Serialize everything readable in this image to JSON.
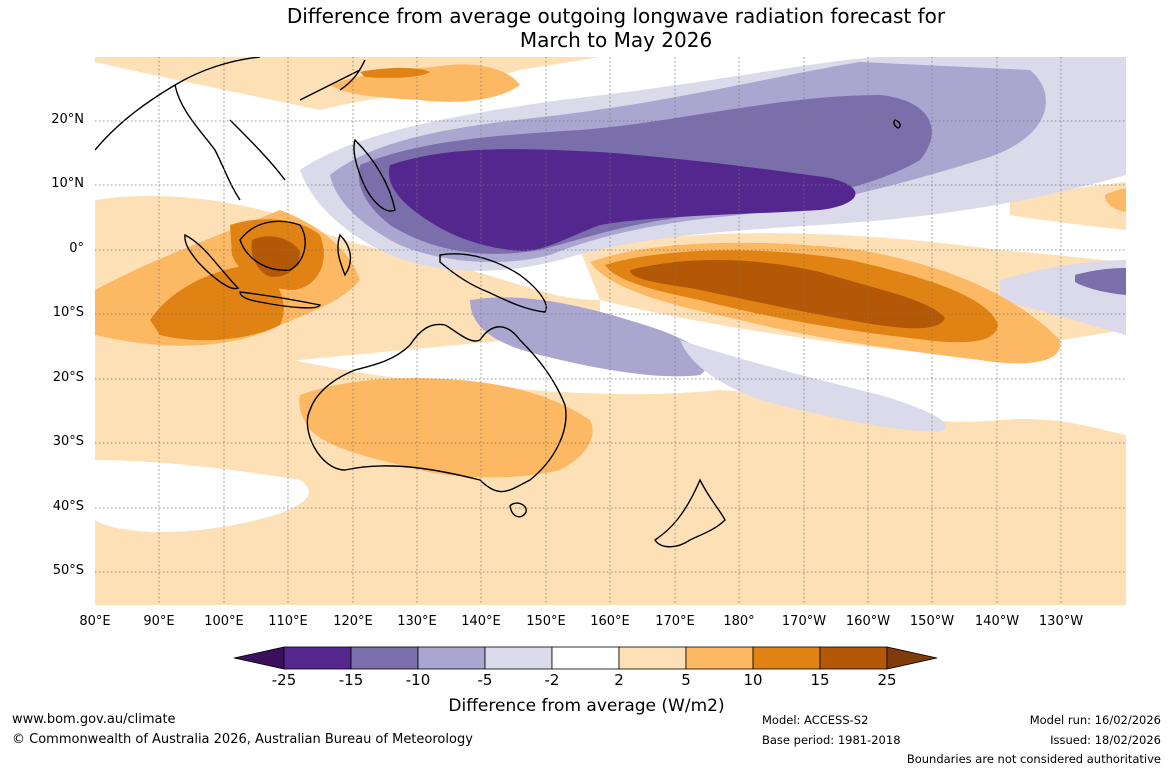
{
  "title": {
    "line1": "Difference from average outgoing longwave radiation forecast for",
    "line2": "March to May 2026"
  },
  "chart_data": {
    "type": "filled-contour-map",
    "variable": "Outgoing longwave radiation anomaly",
    "units": "W/m2",
    "period": "March to May 2026",
    "lat_ticks": [
      "20°N",
      "10°N",
      "0°",
      "10°S",
      "20°S",
      "30°S",
      "40°S",
      "50°S"
    ],
    "lon_ticks": [
      "80°E",
      "90°E",
      "100°E",
      "110°E",
      "120°E",
      "130°E",
      "140°E",
      "150°E",
      "160°E",
      "170°E",
      "180°",
      "170°W",
      "160°W",
      "150°W",
      "140°W",
      "130°W"
    ],
    "colorbar": {
      "label": "Difference from average (W/m2)",
      "ticks": [
        "-25",
        "-15",
        "-10",
        "-5",
        "-2",
        "2",
        "5",
        "10",
        "15",
        "25"
      ],
      "colors": [
        "#3a0f5e",
        "#54278f",
        "#7b6fab",
        "#aba6cf",
        "#dadaeb",
        "#ffffff",
        "#fee0b6",
        "#fdb863",
        "#e08214",
        "#b35806",
        "#7f3b08"
      ]
    },
    "regions": [
      {
        "name": "Equatorial western-central Pacific",
        "level": "-25 to -15",
        "color": "#54278f"
      },
      {
        "name": "North Pacific band",
        "level": "-15 to -10",
        "color": "#7b6fab"
      },
      {
        "name": "Central equatorial Pacific (south of equator)",
        "level": "15 to 25",
        "color": "#b35806"
      },
      {
        "name": "South Pacific convergence zone",
        "level": "10 to 15",
        "color": "#e08214"
      },
      {
        "name": "Java / Borneo",
        "level": "15 to 25",
        "color": "#b35806"
      },
      {
        "name": "Eastern Indian Ocean",
        "level": "10 to 15",
        "color": "#e08214"
      },
      {
        "name": "Australia interior",
        "level": "5 to 10",
        "color": "#fdb863"
      },
      {
        "name": "Coral Sea / northeast Australia",
        "level": "-10 to -5",
        "color": "#aba6cf"
      },
      {
        "name": "Far eastern Pacific near equator",
        "level": "-15 to -10",
        "color": "#7b6fab"
      },
      {
        "name": "Southern Ocean / Tasman Sea",
        "level": "2 to 5",
        "color": "#fee0b6"
      }
    ]
  },
  "footer": {
    "url": "www.bom.gov.au/climate",
    "copyright": "© Commonwealth of Australia 2026, Australian Bureau of Meteorology",
    "model": "Model: ACCESS-S2",
    "base_period": "Base period: 1981-2018",
    "model_run": "Model run: 16/02/2026",
    "issued": "Issued: 18/02/2026",
    "disclaimer": "Boundaries are not considered authoritative"
  }
}
